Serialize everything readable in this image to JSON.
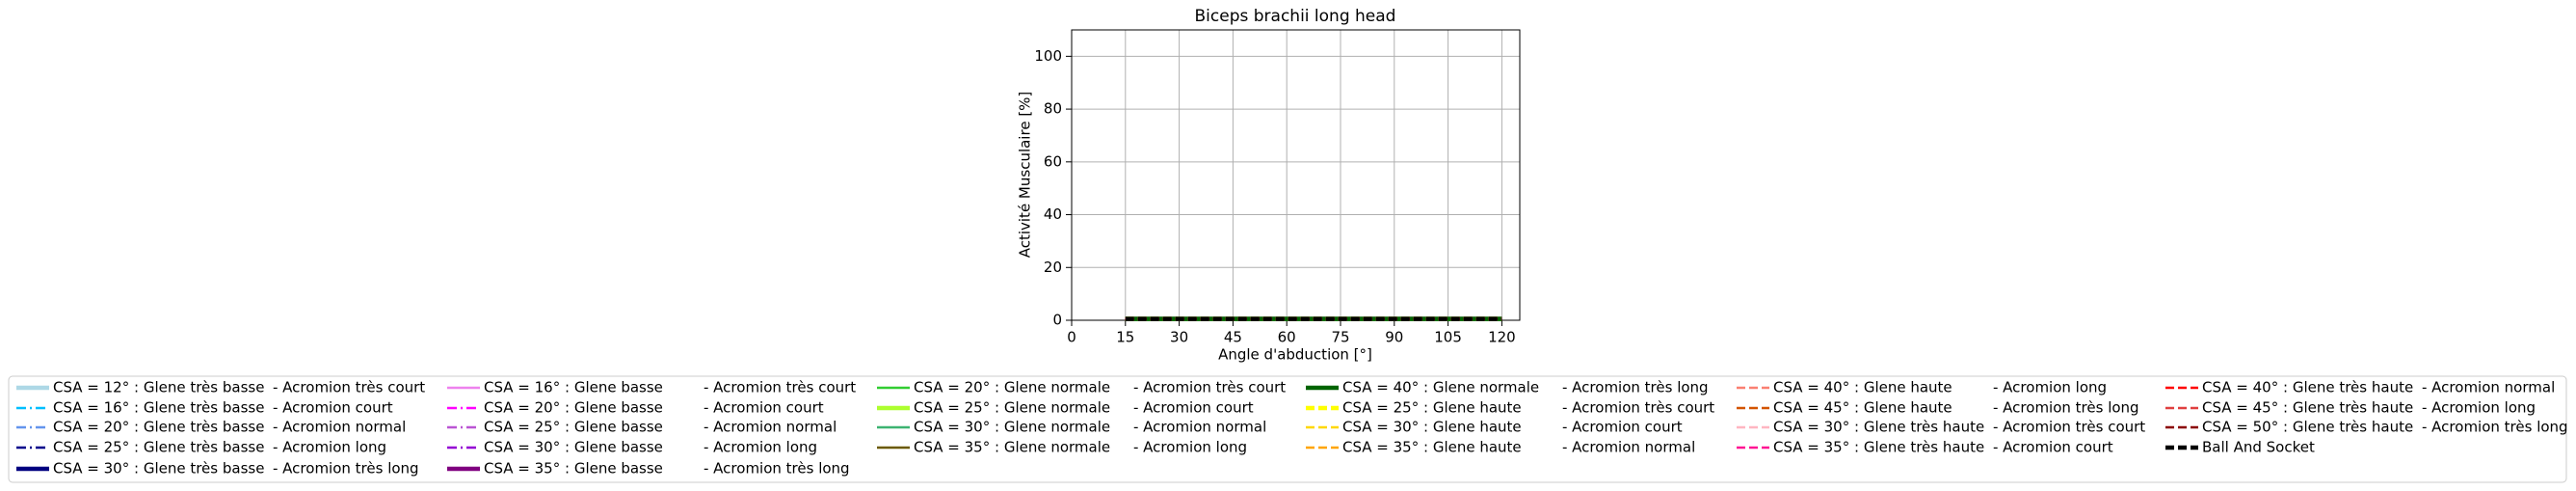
{
  "chart_data": {
    "type": "line",
    "title": "Biceps brachii long head",
    "xlabel": "Angle d'abduction [°]",
    "ylabel": "Activité Musculaire [%]",
    "x": [
      15,
      30,
      45,
      60,
      75,
      90,
      105,
      120
    ],
    "xlim": [
      0,
      125
    ],
    "xticks": [
      0,
      15,
      30,
      45,
      60,
      75,
      90,
      105,
      120
    ],
    "ylim": [
      0,
      110
    ],
    "yticks": [
      0,
      20,
      40,
      60,
      80,
      100
    ],
    "grid": true,
    "legend": "below",
    "series": [
      {
        "name": "CSA = 12° : Glene très basse",
        "suffix": "-  Acromion très court",
        "color": "#add8e6",
        "linestyle": "solid",
        "linewidth": "thick",
        "values": [
          0.5,
          0.5,
          0.5,
          0.5,
          0.5,
          0.5,
          0.5,
          0.5
        ]
      },
      {
        "name": "CSA = 16° : Glene très basse",
        "suffix": "-  Acromion court",
        "color": "#00bfff",
        "linestyle": "dashdot",
        "linewidth": "thin",
        "values": [
          0.5,
          0.5,
          0.5,
          0.5,
          0.5,
          0.5,
          0.5,
          0.5
        ]
      },
      {
        "name": "CSA = 20° : Glene très basse",
        "suffix": "-  Acromion normal",
        "color": "#6495ed",
        "linestyle": "dashdot",
        "linewidth": "thin",
        "values": [
          0.5,
          0.5,
          0.5,
          0.5,
          0.5,
          0.5,
          0.5,
          0.5
        ]
      },
      {
        "name": "CSA = 25° : Glene très basse",
        "suffix": "-  Acromion long",
        "color": "#00008b",
        "linestyle": "dashdot",
        "linewidth": "thin",
        "values": [
          0.5,
          0.5,
          0.5,
          0.5,
          0.5,
          0.5,
          0.5,
          0.5
        ]
      },
      {
        "name": "CSA = 30° : Glene très basse",
        "suffix": "-  Acromion très long",
        "color": "#000080",
        "linestyle": "solid",
        "linewidth": "thick",
        "values": [
          0.5,
          0.5,
          0.5,
          0.5,
          0.5,
          0.5,
          0.5,
          0.5
        ]
      },
      {
        "name": "CSA = 16° : Glene basse",
        "suffix": "-  Acromion très court",
        "color": "#ee82ee",
        "linestyle": "solid",
        "linewidth": "thin",
        "values": [
          0.5,
          0.5,
          0.5,
          0.5,
          0.5,
          0.5,
          0.5,
          0.5
        ]
      },
      {
        "name": "CSA = 20° : Glene basse",
        "suffix": "-  Acromion court",
        "color": "#ff00ff",
        "linestyle": "dashdot",
        "linewidth": "thin",
        "values": [
          0.5,
          0.5,
          0.5,
          0.5,
          0.5,
          0.5,
          0.5,
          0.5
        ]
      },
      {
        "name": "CSA = 25° : Glene basse",
        "suffix": "-  Acromion normal",
        "color": "#ba55d3",
        "linestyle": "dashdot",
        "linewidth": "thin",
        "values": [
          0.5,
          0.5,
          0.5,
          0.5,
          0.5,
          0.5,
          0.5,
          0.5
        ]
      },
      {
        "name": "CSA = 30° : Glene basse",
        "suffix": "-  Acromion long",
        "color": "#9400d3",
        "linestyle": "dashdot",
        "linewidth": "thin",
        "values": [
          0.5,
          0.5,
          0.5,
          0.5,
          0.5,
          0.5,
          0.5,
          0.5
        ]
      },
      {
        "name": "CSA = 35° : Glene basse",
        "suffix": "-  Acromion très long",
        "color": "#800080",
        "linestyle": "solid",
        "linewidth": "thick",
        "values": [
          0.5,
          0.5,
          0.5,
          0.5,
          0.5,
          0.5,
          0.5,
          0.5
        ]
      },
      {
        "name": "CSA = 20° : Glene normale",
        "suffix": "-  Acromion très court",
        "color": "#32cd32",
        "linestyle": "solid",
        "linewidth": "thin",
        "values": [
          0.5,
          0.5,
          0.5,
          0.5,
          0.5,
          0.5,
          0.5,
          0.5
        ]
      },
      {
        "name": "CSA = 25° : Glene normale",
        "suffix": "-  Acromion court",
        "color": "#adff2f",
        "linestyle": "solid",
        "linewidth": "thick",
        "values": [
          0.5,
          0.5,
          0.5,
          0.5,
          0.5,
          0.5,
          0.5,
          0.5
        ]
      },
      {
        "name": "CSA = 30° : Glene normale",
        "suffix": "-  Acromion normal",
        "color": "#3cb371",
        "linestyle": "solid",
        "linewidth": "thin",
        "values": [
          0.5,
          0.5,
          0.5,
          0.5,
          0.5,
          0.5,
          0.5,
          0.5
        ]
      },
      {
        "name": "CSA = 35° : Glene normale",
        "suffix": "-  Acromion long",
        "color": "#6b5a00",
        "linestyle": "solid",
        "linewidth": "thin",
        "values": [
          0.5,
          0.5,
          0.5,
          0.5,
          0.5,
          0.5,
          0.5,
          0.5
        ]
      },
      {
        "name": "CSA = 40° : Glene normale",
        "suffix": "-  Acromion très long",
        "color": "#006400",
        "linestyle": "solid",
        "linewidth": "thick",
        "values": [
          0.5,
          0.5,
          0.5,
          0.5,
          0.5,
          0.5,
          0.5,
          0.5
        ]
      },
      {
        "name": "CSA = 25° : Glene haute",
        "suffix": "-  Acromion très court",
        "color": "#ffff00",
        "linestyle": "dashed",
        "linewidth": "thick",
        "values": [
          0.5,
          0.5,
          0.5,
          0.5,
          0.5,
          0.5,
          0.5,
          0.5
        ]
      },
      {
        "name": "CSA = 30° : Glene haute",
        "suffix": "-  Acromion court",
        "color": "#ffd700",
        "linestyle": "dashed",
        "linewidth": "thin",
        "values": [
          0.5,
          0.5,
          0.5,
          0.5,
          0.5,
          0.5,
          0.5,
          0.5
        ]
      },
      {
        "name": "CSA = 35° : Glene haute",
        "suffix": "-  Acromion normal",
        "color": "#ffa500",
        "linestyle": "dashed",
        "linewidth": "thin",
        "values": [
          0.5,
          0.5,
          0.5,
          0.5,
          0.5,
          0.5,
          0.5,
          0.5
        ]
      },
      {
        "name": "CSA = 40° : Glene haute",
        "suffix": "-  Acromion long",
        "color": "#fa8072",
        "linestyle": "dashed",
        "linewidth": "thin",
        "values": [
          0.5,
          0.5,
          0.5,
          0.5,
          0.5,
          0.5,
          0.5,
          0.5
        ]
      },
      {
        "name": "CSA = 45° : Glene haute",
        "suffix": "-  Acromion très long",
        "color": "#d35400",
        "linestyle": "dashed",
        "linewidth": "thin",
        "values": [
          0.5,
          0.5,
          0.5,
          0.5,
          0.5,
          0.5,
          0.5,
          0.5
        ]
      },
      {
        "name": "CSA = 30° : Glene très haute",
        "suffix": "-  Acromion très court",
        "color": "#ffb6c1",
        "linestyle": "dashed",
        "linewidth": "thin",
        "values": [
          0.5,
          0.5,
          0.5,
          0.5,
          0.5,
          0.5,
          0.5,
          0.5
        ]
      },
      {
        "name": "CSA = 35° : Glene très haute",
        "suffix": "-  Acromion court",
        "color": "#ff1493",
        "linestyle": "dashed",
        "linewidth": "thin",
        "values": [
          0.5,
          0.5,
          0.5,
          0.5,
          0.5,
          0.5,
          0.5,
          0.5
        ]
      },
      {
        "name": "CSA = 40° : Glene très haute",
        "suffix": "-  Acromion normal",
        "color": "#ff0000",
        "linestyle": "dashed",
        "linewidth": "thin",
        "values": [
          0.5,
          0.5,
          0.5,
          0.5,
          0.5,
          0.5,
          0.5,
          0.5
        ]
      },
      {
        "name": "CSA = 45° : Glene très haute",
        "suffix": "-  Acromion long",
        "color": "#e04040",
        "linestyle": "dashed",
        "linewidth": "thin",
        "values": [
          0.5,
          0.5,
          0.5,
          0.5,
          0.5,
          0.5,
          0.5,
          0.5
        ]
      },
      {
        "name": "CSA = 50° : Glene très haute",
        "suffix": "-  Acromion très long",
        "color": "#8b0000",
        "linestyle": "dashed",
        "linewidth": "thin",
        "values": [
          0.5,
          0.5,
          0.5,
          0.5,
          0.5,
          0.5,
          0.5,
          0.5
        ]
      },
      {
        "name": "Ball And Socket",
        "color": "#000000",
        "linestyle": "dashed",
        "linewidth": "thick",
        "values": [
          0.5,
          0.5,
          0.5,
          0.5,
          0.5,
          0.5,
          0.5,
          0.5
        ]
      }
    ]
  }
}
